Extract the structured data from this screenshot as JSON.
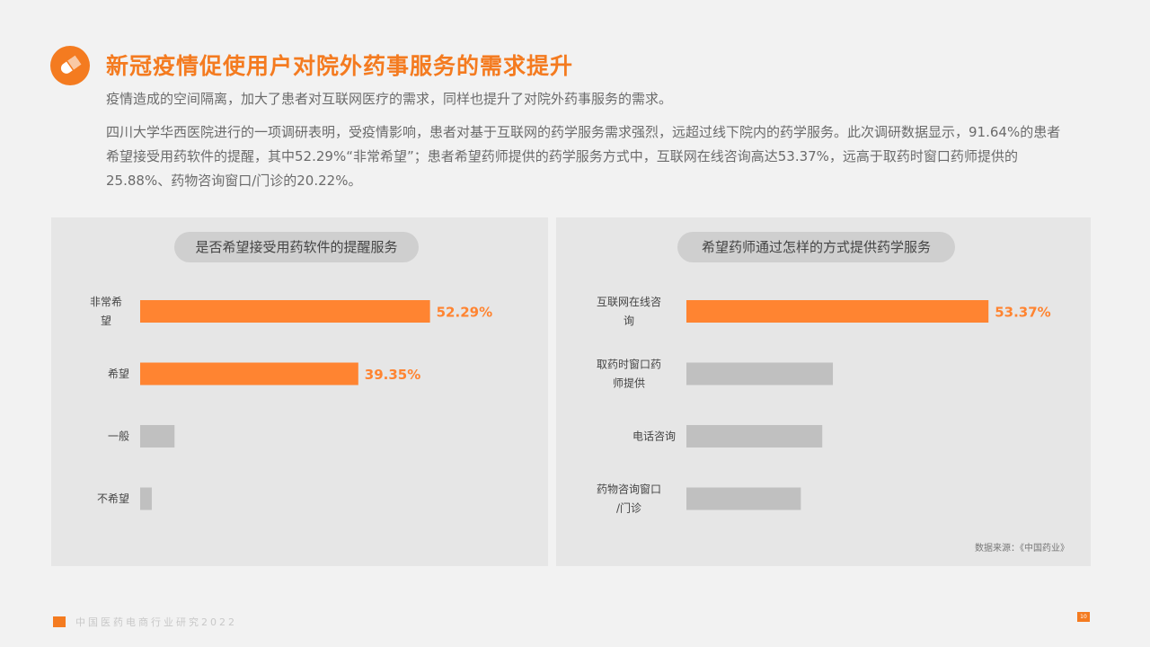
{
  "header": {
    "icon": "pill-icon",
    "title": "新冠疫情促使用户对院外药事服务的需求提升",
    "subtitle": "疫情造成的空间隔离，加大了患者对互联网医疗的需求，同样也提升了对院外药事服务的需求。",
    "body": "四川大学华西医院进行的一项调研表明，受疫情影响，患者对基于互联网的药学服务需求强烈，远超过线下院内的药学服务。此次调研数据显示，91.64%的患者希望接受用药软件的提醒，其中52.29%“非常希望”；患者希望药师提供的药学服务方式中，互联网在线咨询高达53.37%，远高于取药时窗口药师提供的25.88%、药物咨询窗口/门诊的20.22%。"
  },
  "colors": {
    "accent": "#f47b20",
    "bar_highlight": "#ff8431",
    "bar_muted": "#c0c0c0",
    "panel_bg": "#e6e6e6"
  },
  "chart_data": [
    {
      "type": "bar",
      "orientation": "horizontal",
      "title": "是否希望接受用药软件的提醒服务",
      "categories": [
        "非常希望",
        "希望",
        "一般",
        "不希望"
      ],
      "values": [
        52.29,
        39.35,
        6.2,
        2.1
      ],
      "labeled": [
        true,
        true,
        false,
        false
      ],
      "value_labels": [
        "52.29%",
        "39.35%",
        "",
        ""
      ],
      "unit": "%",
      "highlight": [
        true,
        true,
        false,
        false
      ],
      "grid": false,
      "legend": "none"
    },
    {
      "type": "bar",
      "orientation": "horizontal",
      "title": "希望药师通过怎样的方式提供药学服务",
      "categories": [
        "互联网在线咨询",
        "取药时窗口药师提供",
        "电话咨询",
        "药物咨询窗口 /门诊"
      ],
      "values": [
        53.37,
        25.88,
        24.0,
        20.22
      ],
      "labeled": [
        true,
        false,
        false,
        false
      ],
      "value_labels": [
        "53.37%",
        "",
        "",
        ""
      ],
      "unit": "%",
      "highlight": [
        true,
        false,
        false,
        false
      ],
      "grid": false,
      "legend": "none",
      "source": "数据来源：《中国药业》"
    }
  ],
  "footer": {
    "text": "中国医药电商行业研究2022",
    "page_number": "10"
  }
}
